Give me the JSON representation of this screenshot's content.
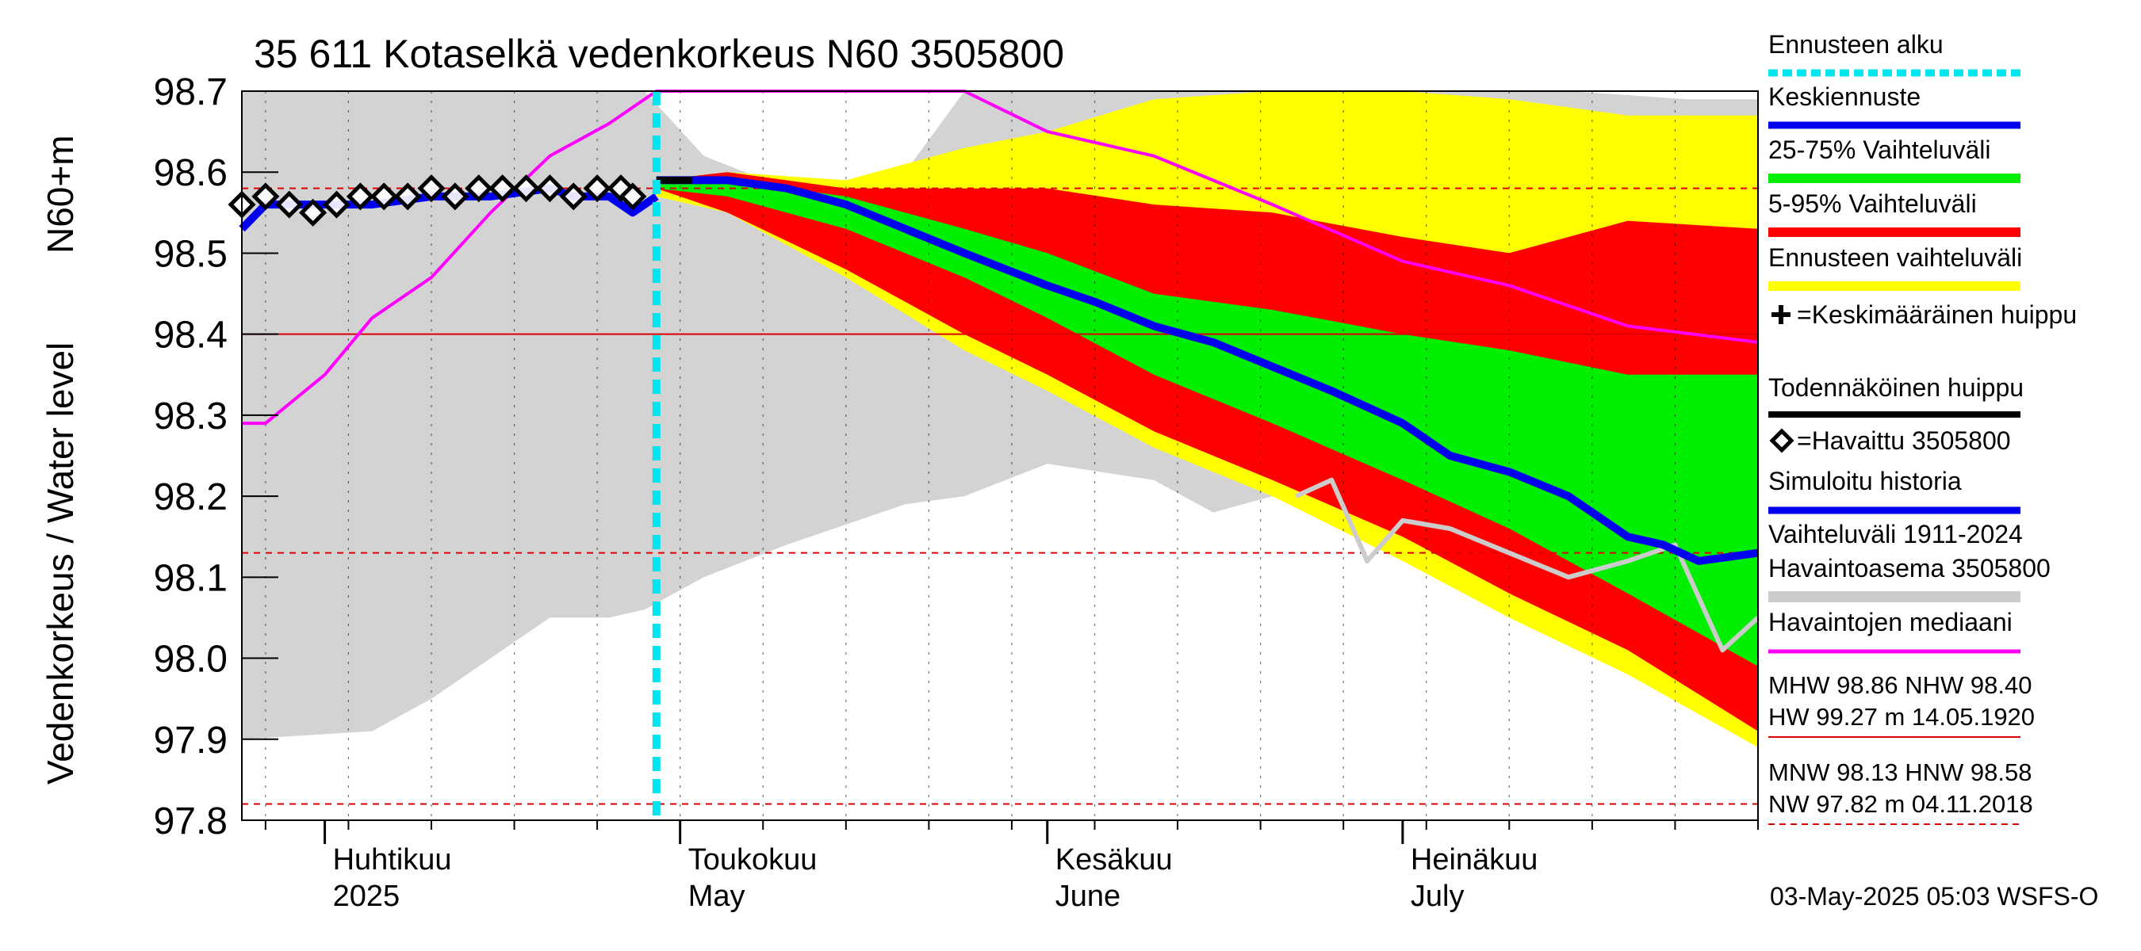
{
  "chart_data": {
    "type": "line",
    "title": "35 611 Kotaselkä vedenkorkeus N60 3505800",
    "ylabel_fi": "Vedenkorkeus / Water level",
    "ylabel_unit": "N60+m",
    "ylim": [
      97.8,
      98.7
    ],
    "yticks": [
      "97.8",
      "97.9",
      "98.0",
      "98.1",
      "98.2",
      "98.3",
      "98.4",
      "98.5",
      "98.6",
      "98.7"
    ],
    "xlim": [
      "2025-03-25",
      "2025-07-31"
    ],
    "months": [
      {
        "fi": "Huhtikuu",
        "en": "2025",
        "date": "2025-04-01"
      },
      {
        "fi": "Toukokuu",
        "en": "May",
        "date": "2025-05-01"
      },
      {
        "fi": "Kesäkuu",
        "en": "June",
        "date": "2025-06-01"
      },
      {
        "fi": "Heinäkuu",
        "en": "July",
        "date": "2025-07-01"
      }
    ],
    "forecast_start": "2025-04-29",
    "colors": {
      "history_range": "#d3d3d3",
      "forecast_range": "#ffff00",
      "p5_95": "#ff0000",
      "p25_75": "#00ee00",
      "mean_forecast": "#0000ee",
      "median": "#ff00ff",
      "observed": "#000000",
      "forecast_start": "#00e5ee",
      "ref_line": "#dd0000",
      "station_obs": "#cccccc"
    },
    "series": {
      "history_range": {
        "x": [
          "2025-03-25",
          "2025-04-05",
          "2025-04-10",
          "2025-04-15",
          "2025-04-20",
          "2025-04-25",
          "2025-04-28",
          "2025-05-03",
          "2025-05-10",
          "2025-05-20",
          "2025-05-25",
          "2025-06-01",
          "2025-06-10",
          "2025-06-15",
          "2025-06-20",
          "2025-06-25",
          "2025-07-05",
          "2025-07-15",
          "2025-07-25",
          "2025-07-31"
        ],
        "upper": [
          98.7,
          98.7,
          98.7,
          98.7,
          98.7,
          98.7,
          98.7,
          98.62,
          98.58,
          98.6,
          98.7,
          98.7,
          98.7,
          98.7,
          98.7,
          98.7,
          98.7,
          98.7,
          98.69,
          98.69
        ],
        "lower": [
          97.9,
          97.91,
          97.95,
          98.0,
          98.05,
          98.05,
          98.06,
          98.1,
          98.14,
          98.19,
          98.2,
          98.24,
          98.22,
          98.18,
          98.2,
          98.23,
          98.2,
          98.18,
          98.15,
          98.14
        ]
      },
      "forecast_range": {
        "x": [
          "2025-04-29",
          "2025-05-05",
          "2025-05-15",
          "2025-05-25",
          "2025-06-01",
          "2025-06-10",
          "2025-06-20",
          "2025-07-01",
          "2025-07-10",
          "2025-07-20",
          "2025-07-31"
        ],
        "upper": [
          98.59,
          98.6,
          98.59,
          98.63,
          98.65,
          98.69,
          98.7,
          98.7,
          98.69,
          98.67,
          98.67
        ],
        "lower": [
          98.57,
          98.55,
          98.47,
          98.38,
          98.33,
          98.26,
          98.2,
          98.12,
          98.05,
          97.98,
          97.89
        ]
      },
      "p5_95": {
        "x": [
          "2025-04-29",
          "2025-05-05",
          "2025-05-15",
          "2025-05-25",
          "2025-06-01",
          "2025-06-10",
          "2025-06-20",
          "2025-07-01",
          "2025-07-10",
          "2025-07-20",
          "2025-07-31"
        ],
        "upper": [
          98.59,
          98.6,
          98.58,
          98.58,
          98.58,
          98.56,
          98.55,
          98.52,
          98.5,
          98.54,
          98.53
        ],
        "lower": [
          98.58,
          98.55,
          98.48,
          98.4,
          98.35,
          98.28,
          98.22,
          98.15,
          98.08,
          98.01,
          97.91
        ]
      },
      "p25_75": {
        "x": [
          "2025-04-29",
          "2025-05-05",
          "2025-05-15",
          "2025-05-25",
          "2025-06-01",
          "2025-06-10",
          "2025-06-20",
          "2025-07-01",
          "2025-07-10",
          "2025-07-20",
          "2025-07-31"
        ],
        "upper": [
          98.59,
          98.59,
          98.57,
          98.53,
          98.5,
          98.45,
          98.43,
          98.4,
          98.38,
          98.35,
          98.35
        ],
        "lower": [
          98.58,
          98.57,
          98.53,
          98.47,
          98.42,
          98.35,
          98.29,
          98.22,
          98.16,
          98.08,
          97.99
        ]
      },
      "mean_forecast": {
        "x": [
          "2025-04-29",
          "2025-05-05",
          "2025-05-10",
          "2025-05-15",
          "2025-05-20",
          "2025-05-25",
          "2025-06-01",
          "2025-06-05",
          "2025-06-10",
          "2025-06-15",
          "2025-06-20",
          "2025-06-25",
          "2025-07-01",
          "2025-07-05",
          "2025-07-10",
          "2025-07-15",
          "2025-07-20",
          "2025-07-23",
          "2025-07-26",
          "2025-07-31"
        ],
        "y": [
          98.59,
          98.59,
          98.58,
          98.56,
          98.53,
          98.5,
          98.46,
          98.44,
          98.41,
          98.39,
          98.36,
          98.33,
          98.29,
          98.25,
          98.23,
          98.2,
          98.15,
          98.14,
          98.12,
          98.13
        ]
      },
      "simulated_history": {
        "x": [
          "2025-03-25",
          "2025-03-27",
          "2025-04-01",
          "2025-04-05",
          "2025-04-10",
          "2025-04-15",
          "2025-04-20",
          "2025-04-22",
          "2025-04-25",
          "2025-04-27",
          "2025-04-29"
        ],
        "y": [
          98.53,
          98.56,
          98.56,
          98.56,
          98.57,
          98.57,
          98.58,
          98.57,
          98.57,
          98.55,
          98.57
        ]
      },
      "observed": {
        "x": [
          "2025-03-25",
          "2025-03-27",
          "2025-03-29",
          "2025-03-31",
          "2025-04-02",
          "2025-04-04",
          "2025-04-06",
          "2025-04-08",
          "2025-04-10",
          "2025-04-12",
          "2025-04-14",
          "2025-04-16",
          "2025-04-18",
          "2025-04-20",
          "2025-04-22",
          "2025-04-24",
          "2025-04-26",
          "2025-04-27"
        ],
        "y": [
          98.56,
          98.57,
          98.56,
          98.55,
          98.56,
          98.57,
          98.57,
          98.57,
          98.58,
          98.57,
          98.58,
          98.58,
          98.58,
          98.58,
          98.57,
          98.58,
          98.58,
          98.57
        ]
      },
      "probable_peak": {
        "x": [
          "2025-04-29",
          "2025-05-02"
        ],
        "y": [
          98.59,
          98.59
        ]
      },
      "median": {
        "x": [
          "2025-03-25",
          "2025-03-27",
          "2025-04-01",
          "2025-04-05",
          "2025-04-10",
          "2025-04-15",
          "2025-04-20",
          "2025-04-25",
          "2025-04-29",
          "2025-05-01",
          "2025-05-25",
          "2025-06-01",
          "2025-06-10",
          "2025-06-20",
          "2025-07-01",
          "2025-07-10",
          "2025-07-20",
          "2025-07-31"
        ],
        "y": [
          98.29,
          98.29,
          98.35,
          98.42,
          98.47,
          98.55,
          98.62,
          98.66,
          98.7,
          98.74,
          98.7,
          98.65,
          98.62,
          98.56,
          98.49,
          98.46,
          98.41,
          98.39
        ]
      },
      "station_obs": {
        "x": [
          "2025-06-22",
          "2025-06-25",
          "2025-06-28",
          "2025-07-01",
          "2025-07-05",
          "2025-07-10",
          "2025-07-15",
          "2025-07-20",
          "2025-07-24",
          "2025-07-28",
          "2025-07-31"
        ],
        "y": [
          98.2,
          98.22,
          98.12,
          98.17,
          98.16,
          98.13,
          98.1,
          98.12,
          98.14,
          98.01,
          98.05
        ]
      }
    },
    "reference_lines": [
      {
        "y": 98.4,
        "style": "solid"
      },
      {
        "y": 98.58,
        "style": "dashed"
      },
      {
        "y": 98.13,
        "style": "dashed"
      },
      {
        "y": 97.82,
        "style": "dashed"
      }
    ],
    "legend": [
      "Ennusteen alku",
      "Keskiennuste",
      "25-75% Vaihteluväli",
      "5-95% Vaihteluväli",
      "Ennusteen vaihteluväli",
      "=Keskimääräinen huippu",
      "Todennäköinen huippu",
      "=Havaittu 3505800",
      "Simuloitu historia",
      "Vaihteluväli 1911-2024",
      " Havaintoasema 3505800",
      "Havaintojen mediaani"
    ],
    "stats": [
      "MHW  98.86 NHW  98.40",
      "HW  99.27 m 14.05.1920",
      "MNW  98.13 HNW  98.58",
      "NW  97.82 m 04.11.2018"
    ],
    "timestamp": "03-May-2025 05:03 WSFS-O"
  }
}
